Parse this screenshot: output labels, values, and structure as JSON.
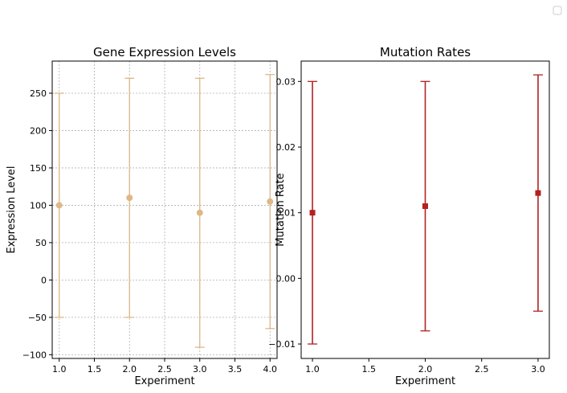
{
  "chart_data": [
    {
      "type": "scatter",
      "title": "Gene Expression Levels",
      "xlabel": "Experiment",
      "ylabel": "Expression Level",
      "xlim": [
        0.9,
        4.1
      ],
      "ylim": [
        -105,
        293
      ],
      "xticks": [
        1.0,
        1.5,
        2.0,
        2.5,
        3.0,
        3.5,
        4.0
      ],
      "xtick_labels": [
        "1.0",
        "1.5",
        "2.0",
        "2.5",
        "3.0",
        "3.5",
        "4.0"
      ],
      "yticks": [
        -100,
        -50,
        0,
        50,
        100,
        150,
        200,
        250
      ],
      "ytick_labels": [
        "−100",
        "−50",
        "0",
        "50",
        "100",
        "150",
        "200",
        "250"
      ],
      "grid": true,
      "marker": "circle",
      "color": "#deb887",
      "series": [
        {
          "x": [
            1,
            2,
            3,
            4
          ],
          "y": [
            100,
            110,
            90,
            105
          ],
          "yerr_low": [
            -50,
            -50,
            -90,
            -65
          ],
          "yerr_high": [
            250,
            270,
            270,
            275
          ]
        }
      ]
    },
    {
      "type": "scatter",
      "title": "Mutation Rates",
      "xlabel": "Experiment",
      "ylabel": "Mutation Rate",
      "xlim": [
        0.9,
        3.1
      ],
      "ylim": [
        -0.0122,
        0.0331
      ],
      "xticks": [
        1.0,
        1.5,
        2.0,
        2.5,
        3.0
      ],
      "xtick_labels": [
        "1.0",
        "1.5",
        "2.0",
        "2.5",
        "3.0"
      ],
      "yticks": [
        -0.01,
        0.0,
        0.01,
        0.02,
        0.03
      ],
      "ytick_labels": [
        "−0.01",
        "0.00",
        "0.01",
        "0.02",
        "0.03"
      ],
      "grid": false,
      "marker": "square",
      "color": "#b22222",
      "series": [
        {
          "x": [
            1,
            2,
            3
          ],
          "y": [
            0.01,
            0.011,
            0.013
          ],
          "yerr_low": [
            -0.01,
            -0.008,
            -0.005
          ],
          "yerr_high": [
            0.03,
            0.03,
            0.031
          ]
        }
      ]
    }
  ],
  "legend": {
    "placement": "top-right",
    "entries": []
  }
}
